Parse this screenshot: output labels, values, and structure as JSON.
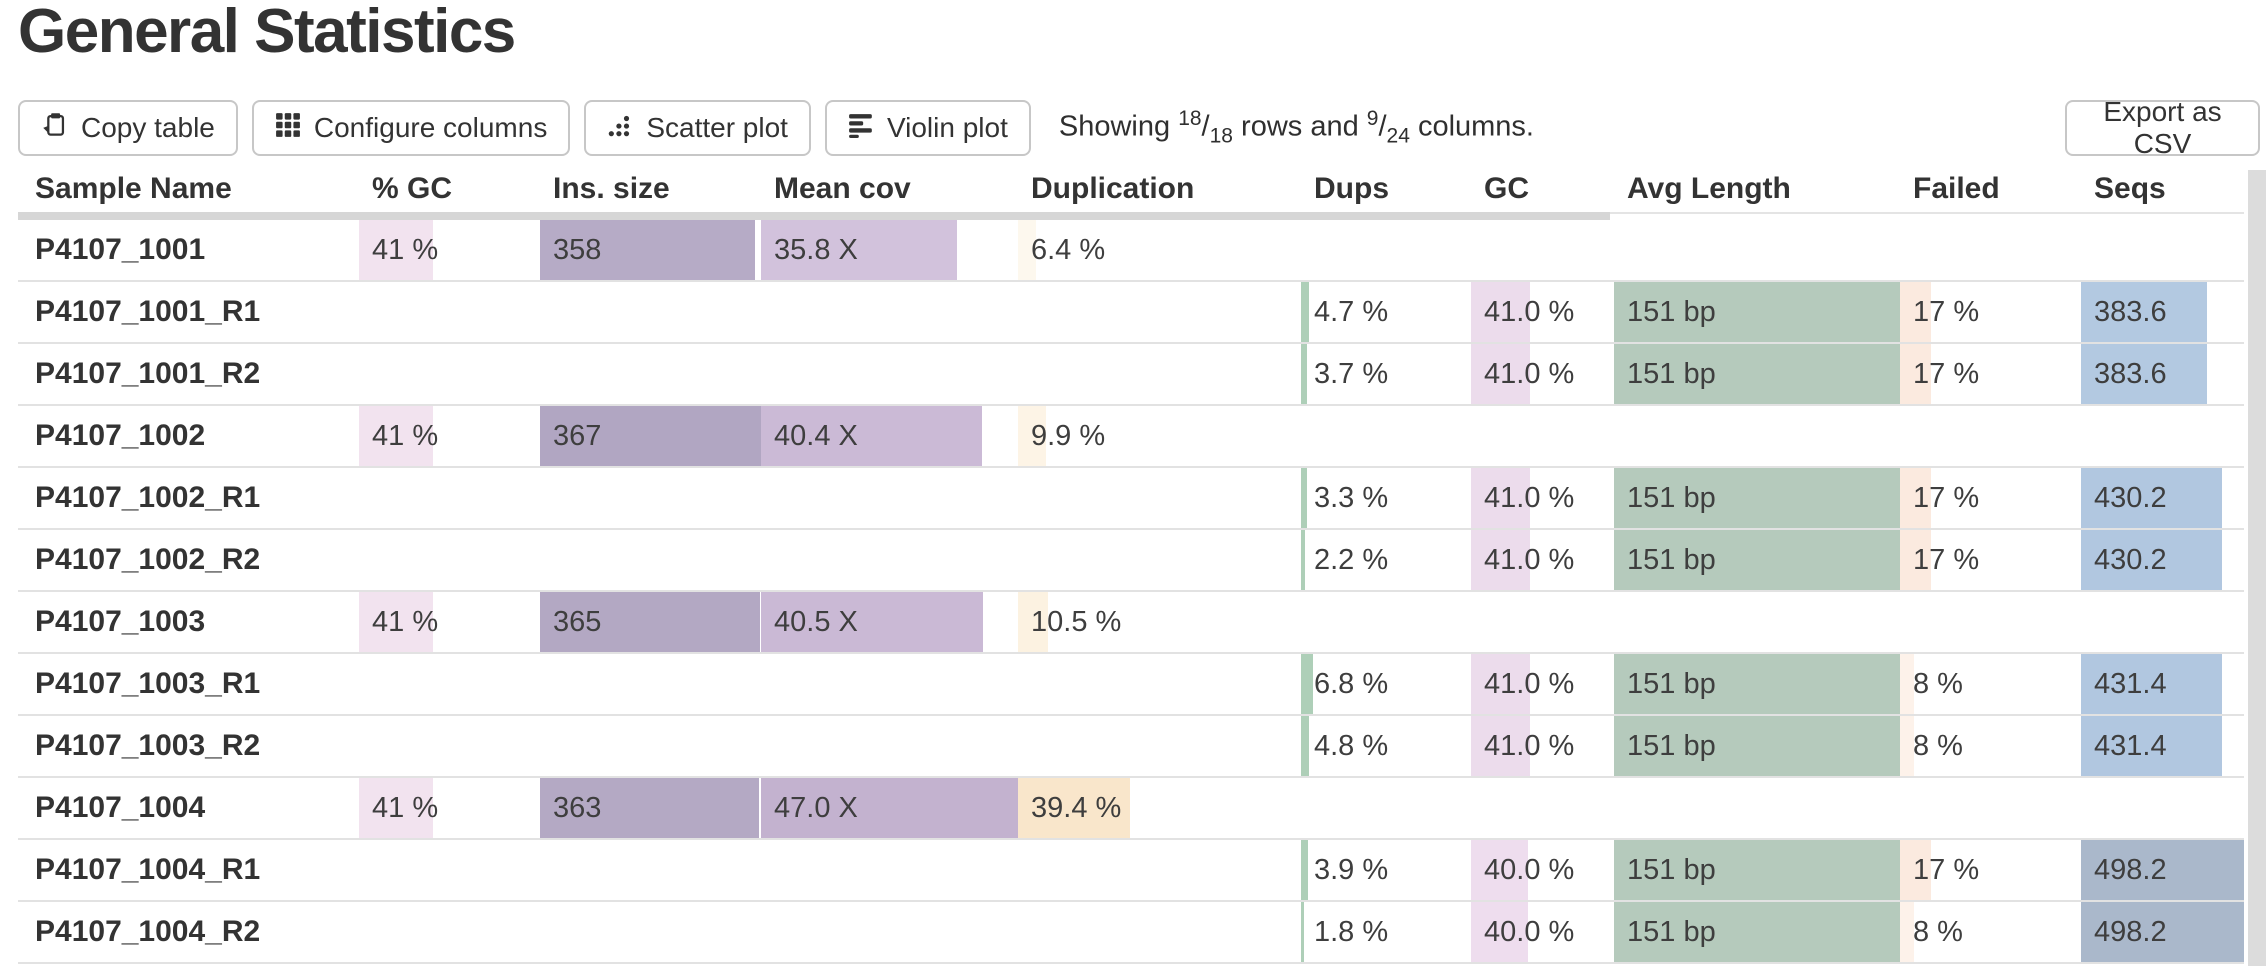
{
  "title": "General Statistics",
  "toolbar": {
    "copy_label": "Copy table",
    "configure_label": "Configure columns",
    "scatter_label": "Scatter plot",
    "violin_label": "Violin plot",
    "showing": {
      "word": "Showing",
      "rows_shown": "18",
      "rows_total": "18",
      "rows_word": "rows and",
      "cols_shown": "9",
      "cols_total": "24",
      "cols_word": "columns."
    },
    "export_label": "Export as CSV"
  },
  "colors": {
    "header_band": "#d6d6d6",
    "row_border": "#e2e2e2",
    "button_border": "#c7c7c7",
    "scrollbar": "#dcdcdc",
    "text": "#333333"
  },
  "table": {
    "columns": [
      {
        "key": "sample",
        "label": "Sample Name"
      },
      {
        "key": "gc_pct",
        "label": "% GC"
      },
      {
        "key": "ins_size",
        "label": "Ins. size"
      },
      {
        "key": "mean_cov",
        "label": "Mean cov"
      },
      {
        "key": "duplication",
        "label": "Duplication"
      },
      {
        "key": "dups",
        "label": "Dups"
      },
      {
        "key": "gc",
        "label": "GC"
      },
      {
        "key": "avg_length",
        "label": "Avg Length"
      },
      {
        "key": "failed",
        "label": "Failed"
      },
      {
        "key": "seqs",
        "label": "Seqs"
      }
    ],
    "rows": [
      {
        "sample": "P4107_1001",
        "cells": {
          "gc_pct": {
            "text": "41 %",
            "pct": 41,
            "bg": "#f2e3ef"
          },
          "ins_size": {
            "text": "358",
            "pct": 97.5,
            "bg": "#b6abc6"
          },
          "mean_cov": {
            "text": "35.8 X",
            "pct": 76.2,
            "bg": "#d2c2dc"
          },
          "duplication": {
            "text": "6.4 %",
            "pct": 6.4,
            "bg": "#fdf8ee"
          }
        }
      },
      {
        "sample": "P4107_1001_R1",
        "cells": {
          "dups": {
            "text": "4.7 %",
            "pct": 4.7,
            "bg": "#aecfb8"
          },
          "gc": {
            "text": "41.0 %",
            "pct": 41,
            "bg": "#ecdcec"
          },
          "avg_length": {
            "text": "151 bp",
            "pct": 100,
            "bg": "#b5cabc"
          },
          "failed": {
            "text": "17 %",
            "pct": 17,
            "bg": "#fbeadf"
          },
          "seqs": {
            "text": "383.6",
            "pct": 77,
            "bg": "#b3c9e1"
          }
        }
      },
      {
        "sample": "P4107_1001_R2",
        "cells": {
          "dups": {
            "text": "3.7 %",
            "pct": 3.7,
            "bg": "#aecfb8"
          },
          "gc": {
            "text": "41.0 %",
            "pct": 41,
            "bg": "#ecdcec"
          },
          "avg_length": {
            "text": "151 bp",
            "pct": 100,
            "bg": "#b5cabc"
          },
          "failed": {
            "text": "17 %",
            "pct": 17,
            "bg": "#fbeadf"
          },
          "seqs": {
            "text": "383.6",
            "pct": 77,
            "bg": "#b3c9e1"
          }
        }
      },
      {
        "sample": "P4107_1002",
        "cells": {
          "gc_pct": {
            "text": "41 %",
            "pct": 41,
            "bg": "#f2e3ef"
          },
          "ins_size": {
            "text": "367",
            "pct": 100,
            "bg": "#b1a6c2"
          },
          "mean_cov": {
            "text": "40.4 X",
            "pct": 86,
            "bg": "#cbbad6"
          },
          "duplication": {
            "text": "9.9 %",
            "pct": 9.9,
            "bg": "#fdf4e6"
          }
        }
      },
      {
        "sample": "P4107_1002_R1",
        "cells": {
          "dups": {
            "text": "3.3 %",
            "pct": 3.3,
            "bg": "#aecfb8"
          },
          "gc": {
            "text": "41.0 %",
            "pct": 41,
            "bg": "#ecdcec"
          },
          "avg_length": {
            "text": "151 bp",
            "pct": 100,
            "bg": "#b5cabc"
          },
          "failed": {
            "text": "17 %",
            "pct": 17,
            "bg": "#fbeadf"
          },
          "seqs": {
            "text": "430.2",
            "pct": 86.3,
            "bg": "#b1c7e0"
          }
        }
      },
      {
        "sample": "P4107_1002_R2",
        "cells": {
          "dups": {
            "text": "2.2 %",
            "pct": 2.2,
            "bg": "#aecfb8"
          },
          "gc": {
            "text": "41.0 %",
            "pct": 41,
            "bg": "#ecdcec"
          },
          "avg_length": {
            "text": "151 bp",
            "pct": 100,
            "bg": "#b5cabc"
          },
          "failed": {
            "text": "17 %",
            "pct": 17,
            "bg": "#fbeadf"
          },
          "seqs": {
            "text": "430.2",
            "pct": 86.3,
            "bg": "#b1c7e0"
          }
        }
      },
      {
        "sample": "P4107_1003",
        "cells": {
          "gc_pct": {
            "text": "41 %",
            "pct": 41,
            "bg": "#f2e3ef"
          },
          "ins_size": {
            "text": "365",
            "pct": 99.5,
            "bg": "#b3a8c3"
          },
          "mean_cov": {
            "text": "40.5 X",
            "pct": 86.2,
            "bg": "#cab9d5"
          },
          "duplication": {
            "text": "10.5 %",
            "pct": 10.5,
            "bg": "#fcf2e1"
          }
        }
      },
      {
        "sample": "P4107_1003_R1",
        "cells": {
          "dups": {
            "text": "6.8 %",
            "pct": 6.8,
            "bg": "#aecfb8"
          },
          "gc": {
            "text": "41.0 %",
            "pct": 41,
            "bg": "#ecdcec"
          },
          "avg_length": {
            "text": "151 bp",
            "pct": 100,
            "bg": "#b5cabc"
          },
          "failed": {
            "text": "8 %",
            "pct": 8,
            "bg": "#fdf2ea"
          },
          "seqs": {
            "text": "431.4",
            "pct": 86.6,
            "bg": "#b1c7e0"
          }
        }
      },
      {
        "sample": "P4107_1003_R2",
        "cells": {
          "dups": {
            "text": "4.8 %",
            "pct": 4.8,
            "bg": "#aecfb8"
          },
          "gc": {
            "text": "41.0 %",
            "pct": 41,
            "bg": "#ecdcec"
          },
          "avg_length": {
            "text": "151 bp",
            "pct": 100,
            "bg": "#b5cabc"
          },
          "failed": {
            "text": "8 %",
            "pct": 8,
            "bg": "#fdf2ea"
          },
          "seqs": {
            "text": "431.4",
            "pct": 86.6,
            "bg": "#b1c7e0"
          }
        }
      },
      {
        "sample": "P4107_1004",
        "cells": {
          "gc_pct": {
            "text": "41 %",
            "pct": 41,
            "bg": "#f2e3ef"
          },
          "ins_size": {
            "text": "363",
            "pct": 98.9,
            "bg": "#b4a9c4"
          },
          "mean_cov": {
            "text": "47.0 X",
            "pct": 100,
            "bg": "#c3b2cf"
          },
          "duplication": {
            "text": "39.4 %",
            "pct": 39.4,
            "bg": "#f9e6cb"
          }
        }
      },
      {
        "sample": "P4107_1004_R1",
        "cells": {
          "dups": {
            "text": "3.9 %",
            "pct": 3.9,
            "bg": "#aecfb8"
          },
          "gc": {
            "text": "40.0 %",
            "pct": 40,
            "bg": "#eeddee"
          },
          "avg_length": {
            "text": "151 bp",
            "pct": 100,
            "bg": "#b5cabc"
          },
          "failed": {
            "text": "17 %",
            "pct": 17,
            "bg": "#fbeadf"
          },
          "seqs": {
            "text": "498.2",
            "pct": 100,
            "bg": "#aab8cb"
          }
        }
      },
      {
        "sample": "P4107_1004_R2",
        "cells": {
          "dups": {
            "text": "1.8 %",
            "pct": 1.8,
            "bg": "#aecfb8"
          },
          "gc": {
            "text": "40.0 %",
            "pct": 40,
            "bg": "#eeddee"
          },
          "avg_length": {
            "text": "151 bp",
            "pct": 100,
            "bg": "#b5cabc"
          },
          "failed": {
            "text": "8 %",
            "pct": 8,
            "bg": "#fdf2ea"
          },
          "seqs": {
            "text": "498.2",
            "pct": 100,
            "bg": "#aab8cb"
          }
        }
      }
    ]
  }
}
